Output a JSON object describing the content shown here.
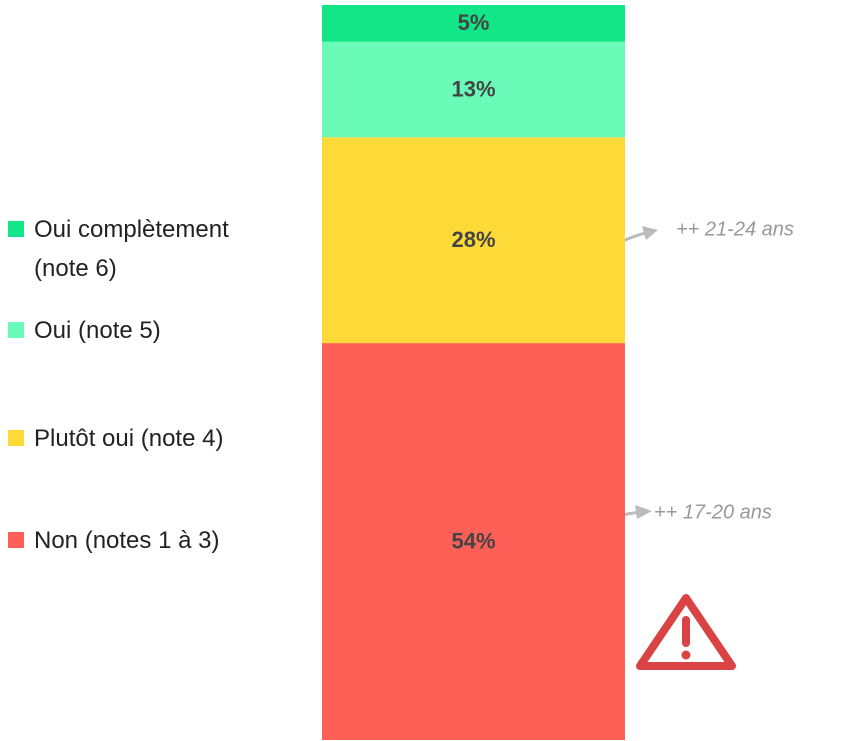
{
  "chart_data": {
    "type": "stacked_bar",
    "categories": [
      null
    ],
    "series": [
      {
        "name": "Oui complètement (note 6)",
        "color": "#12e687",
        "values": [
          5
        ],
        "value_labels": [
          "5%"
        ]
      },
      {
        "name": "Oui (note 5)",
        "color": "#6bfbb8",
        "values": [
          13
        ],
        "value_labels": [
          "13%"
        ]
      },
      {
        "name": "Plutôt oui (note 4)",
        "color": "#fdda38",
        "values": [
          28
        ],
        "value_labels": [
          "28%"
        ]
      },
      {
        "name": "Non (notes 1 à 3)",
        "color": "#fe5f57",
        "values": [
          54
        ],
        "value_labels": [
          "54%"
        ]
      }
    ],
    "ylim": [
      0,
      100
    ],
    "annotations": [
      "++ 21-24 ans",
      "++ 17-20 ans"
    ]
  }
}
